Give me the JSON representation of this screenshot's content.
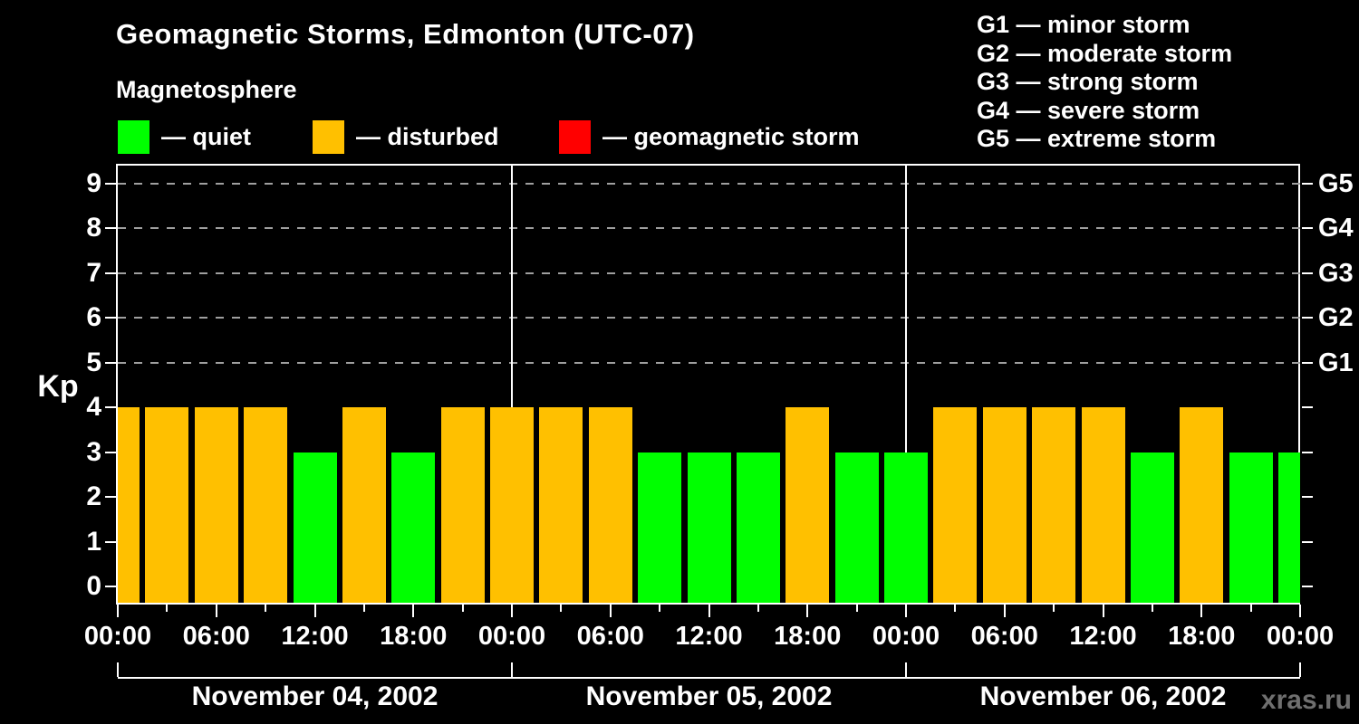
{
  "title": "Geomagnetic Storms, Edmonton (UTC-07)",
  "subtitle": "Magnetosphere",
  "condition_legend": [
    {
      "name": "quiet",
      "label": "— quiet",
      "color": "#00ff00"
    },
    {
      "name": "disturbed",
      "label": "— disturbed",
      "color": "#ffc000"
    },
    {
      "name": "storm",
      "label": "— geomagnetic storm",
      "color": "#ff0000"
    }
  ],
  "storm_scale_legend": [
    {
      "label": "G1 — minor storm"
    },
    {
      "label": "G2 — moderate storm"
    },
    {
      "label": "G3 — strong storm"
    },
    {
      "label": "G4 — severe storm"
    },
    {
      "label": "G5 — extreme storm"
    }
  ],
  "watermark": "xras.ru",
  "chart_data": {
    "type": "bar",
    "ylabel": "Kp",
    "ylim": [
      0,
      9
    ],
    "yticks": [
      0,
      1,
      2,
      3,
      4,
      5,
      6,
      7,
      8,
      9
    ],
    "right_axis": [
      {
        "label": "G1",
        "kp": 5
      },
      {
        "label": "G2",
        "kp": 6
      },
      {
        "label": "G3",
        "kp": 7
      },
      {
        "label": "G4",
        "kp": 8
      },
      {
        "label": "G5",
        "kp": 9
      }
    ],
    "gridline_levels": [
      5,
      6,
      7,
      8,
      9
    ],
    "hours_per_bar": 3,
    "x_tick_labels": [
      "00:00",
      "06:00",
      "12:00",
      "18:00",
      "00:00",
      "06:00",
      "12:00",
      "18:00",
      "00:00",
      "06:00",
      "12:00",
      "18:00",
      "00:00"
    ],
    "days": [
      {
        "date": "November 04, 2002",
        "kp_values": [
          4,
          4,
          4,
          4,
          3,
          4,
          3,
          4
        ]
      },
      {
        "date": "November 05, 2002",
        "kp_values": [
          4,
          4,
          4,
          3,
          3,
          3,
          4,
          3
        ]
      },
      {
        "date": "November 06, 2002",
        "kp_values": [
          3,
          4,
          4,
          4,
          4,
          3,
          4,
          3
        ]
      }
    ],
    "partial_next_day_value": 3,
    "colors": {
      "quiet": "#00ff00",
      "disturbed": "#ffc000",
      "storm": "#ff0000"
    },
    "color_thresholds": {
      "quiet_max_kp": 3,
      "disturbed_kp": 4,
      "storm_min_kp": 5
    }
  }
}
